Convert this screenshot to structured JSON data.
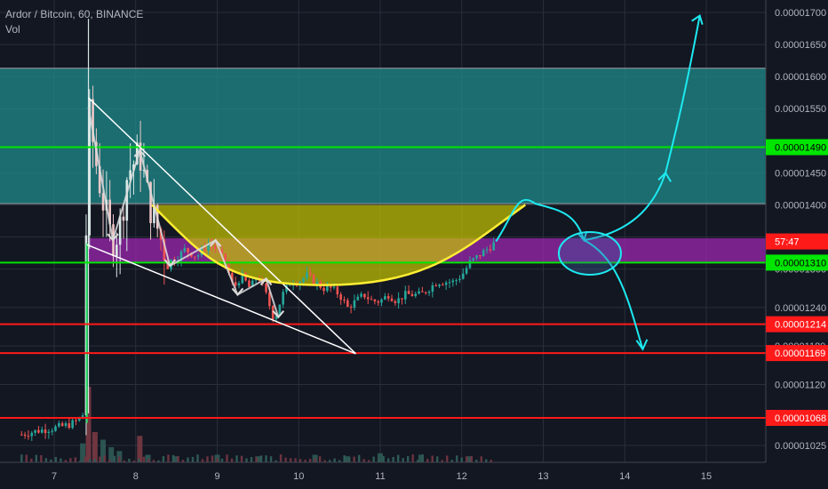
{
  "chart_data": {
    "type": "candlestick",
    "symbol_title": "Ardor / Bitcoin, 60, BINANCE",
    "volume_label": "Vol",
    "price_axis": {
      "min": 1e-05,
      "max": 1.713e-05,
      "ticks": [
        "0.00001700",
        "0.00001650",
        "0.00001600",
        "0.00001550",
        "0.00001450",
        "0.00001400",
        "0.00001350",
        "0.00001300",
        "0.00001240",
        "0.00001180",
        "0.00001120",
        "0.00001025"
      ]
    },
    "x_axis": {
      "ticks": [
        "7",
        "8",
        "9",
        "10",
        "11",
        "12",
        "13",
        "14",
        "15"
      ]
    },
    "zones": [
      {
        "name": "resistance-zone",
        "from": 1.402e-05,
        "to": 1.613e-05,
        "color": "#1f8f8f"
      },
      {
        "name": "support-zone",
        "from": 1.311e-05,
        "to": 1.348e-05,
        "color": "#9c27b0"
      },
      {
        "name": "cup-fill",
        "color": "#c8c800"
      }
    ],
    "horizontal_levels": [
      {
        "price": 1.49e-05,
        "label": "0.00001490",
        "color": "#00e600"
      },
      {
        "price": 1.31e-05,
        "label": "0.00001310",
        "color": "#00e600"
      },
      {
        "price": 1.214e-05,
        "label": "0.00001214",
        "color": "#ff1a1a"
      },
      {
        "price": 1.169e-05,
        "label": "0.00001169",
        "color": "#ff1a1a"
      },
      {
        "price": 1.068e-05,
        "label": "0.00001068",
        "color": "#ff1a1a"
      }
    ],
    "countdown_label": {
      "text": "57:47",
      "price": 1.343e-05,
      "color": "#ff1a1a"
    },
    "price_series": [
      {
        "t": 6.6,
        "p": 1.042e-05
      },
      {
        "t": 6.8,
        "p": 1.048e-05
      },
      {
        "t": 7.0,
        "p": 1.052e-05
      },
      {
        "t": 7.2,
        "p": 1.058e-05
      },
      {
        "t": 7.3,
        "p": 1.065e-05
      },
      {
        "t": 7.35,
        "p": 1.075e-05
      },
      {
        "t": 7.42,
        "p": 1.55e-05
      },
      {
        "t": 7.5,
        "p": 1.475e-05
      },
      {
        "t": 7.6,
        "p": 1.405e-05
      },
      {
        "t": 7.7,
        "p": 1.345e-05
      },
      {
        "t": 7.8,
        "p": 1.36e-05
      },
      {
        "t": 7.9,
        "p": 1.45e-05
      },
      {
        "t": 8.05,
        "p": 1.48e-05
      },
      {
        "t": 8.15,
        "p": 1.41e-05
      },
      {
        "t": 8.25,
        "p": 1.37e-05
      },
      {
        "t": 8.35,
        "p": 1.33e-05
      },
      {
        "t": 8.45,
        "p": 1.31e-05
      },
      {
        "t": 8.6,
        "p": 1.33e-05
      },
      {
        "t": 8.75,
        "p": 1.32e-05
      },
      {
        "t": 8.9,
        "p": 1.34e-05
      },
      {
        "t": 9.0,
        "p": 1.33e-05
      },
      {
        "t": 9.1,
        "p": 1.31e-05
      },
      {
        "t": 9.2,
        "p": 1.27e-05
      },
      {
        "t": 9.3,
        "p": 1.29e-05
      },
      {
        "t": 9.4,
        "p": 1.27e-05
      },
      {
        "t": 9.5,
        "p": 1.29e-05
      },
      {
        "t": 9.6,
        "p": 1.26e-05
      },
      {
        "t": 9.7,
        "p": 1.22e-05
      },
      {
        "t": 9.8,
        "p": 1.26e-05
      },
      {
        "t": 9.9,
        "p": 1.28e-05
      },
      {
        "t": 10.0,
        "p": 1.28e-05
      },
      {
        "t": 10.1,
        "p": 1.29e-05
      },
      {
        "t": 10.2,
        "p": 1.28e-05
      },
      {
        "t": 10.3,
        "p": 1.27e-05
      },
      {
        "t": 10.4,
        "p": 1.27e-05
      },
      {
        "t": 10.5,
        "p": 1.26e-05
      },
      {
        "t": 10.6,
        "p": 1.24e-05
      },
      {
        "t": 10.7,
        "p": 1.25e-05
      },
      {
        "t": 10.8,
        "p": 1.26e-05
      },
      {
        "t": 10.9,
        "p": 1.25e-05
      },
      {
        "t": 11.0,
        "p": 1.25e-05
      },
      {
        "t": 11.1,
        "p": 1.26e-05
      },
      {
        "t": 11.2,
        "p": 1.25e-05
      },
      {
        "t": 11.3,
        "p": 1.26e-05
      },
      {
        "t": 11.4,
        "p": 1.26e-05
      },
      {
        "t": 11.5,
        "p": 1.26e-05
      },
      {
        "t": 11.6,
        "p": 1.27e-05
      },
      {
        "t": 11.7,
        "p": 1.28e-05
      },
      {
        "t": 11.8,
        "p": 1.28e-05
      },
      {
        "t": 11.9,
        "p": 1.28e-05
      },
      {
        "t": 12.0,
        "p": 1.29e-05
      },
      {
        "t": 12.1,
        "p": 1.31e-05
      },
      {
        "t": 12.2,
        "p": 1.32e-05
      },
      {
        "t": 12.3,
        "p": 1.33e-05
      },
      {
        "t": 12.4,
        "p": 1.34e-05
      }
    ],
    "volume_series": [
      {
        "t": 7.35,
        "v": 0.25
      },
      {
        "t": 7.42,
        "v": 1.0
      },
      {
        "t": 7.5,
        "v": 0.4
      },
      {
        "t": 7.6,
        "v": 0.3
      },
      {
        "t": 7.7,
        "v": 0.2
      },
      {
        "t": 7.8,
        "v": 0.15
      },
      {
        "t": 8.05,
        "v": 0.35
      },
      {
        "t": 8.15,
        "v": 0.1
      },
      {
        "t": 8.5,
        "v": 0.08
      },
      {
        "t": 9.0,
        "v": 0.1
      },
      {
        "t": 9.5,
        "v": 0.08
      },
      {
        "t": 10.2,
        "v": 0.1
      },
      {
        "t": 10.6,
        "v": 0.08
      },
      {
        "t": 11.0,
        "v": 0.12
      },
      {
        "t": 11.5,
        "v": 0.1
      },
      {
        "t": 12.1,
        "v": 0.08
      }
    ],
    "drawings": {
      "falling_wedge_upper": [
        {
          "t": 7.42,
          "p": 1.567e-05
        },
        {
          "t": 9.85,
          "p": 1.235e-05
        }
      ],
      "falling_wedge_lower": [
        {
          "t": 7.4,
          "p": 1.338e-05
        },
        {
          "t": 10.7,
          "p": 1.168e-05
        }
      ],
      "cup_curve": {
        "left": {
          "t": 8.2,
          "p": 1.4e-05
        },
        "bottom": {
          "t": 10.3,
          "p": 1.275e-05
        },
        "right": {
          "t": 12.78,
          "p": 1.4e-05
        }
      },
      "zigzag_arrows": [
        {
          "t": 7.42,
          "p": 1.552e-05
        },
        {
          "t": 7.72,
          "p": 1.345e-05
        },
        {
          "t": 8.05,
          "p": 1.485e-05
        },
        {
          "t": 8.42,
          "p": 1.305e-05
        },
        {
          "t": 8.98,
          "p": 1.345e-05
        },
        {
          "t": 9.25,
          "p": 1.26e-05
        },
        {
          "t": 9.6,
          "p": 1.285e-05
        },
        {
          "t": 9.75,
          "p": 1.225e-05
        }
      ],
      "forecast_path": [
        {
          "t": 12.42,
          "p": 1.343e-05
        },
        {
          "t": 12.9,
          "p": 1.402e-05
        },
        {
          "t": 13.5,
          "p": 1.345e-05
        }
      ],
      "forecast_up": [
        {
          "t": 13.5,
          "p": 1.345e-05
        },
        {
          "t": 14.5,
          "p": 1.45e-05
        },
        {
          "t": 14.92,
          "p": 1.695e-05
        }
      ],
      "forecast_down": [
        {
          "t": 13.5,
          "p": 1.345e-05
        },
        {
          "t": 14.22,
          "p": 1.175e-05
        }
      ],
      "target_ellipse": {
        "t": 13.55,
        "p": 1.33e-05
      },
      "forecast_color": "#1de9f0"
    },
    "colors": {
      "up": "#26a69a",
      "down": "#ef5350",
      "background": "#131722",
      "grid": "#2a2e39",
      "axis_text": "#b2b5be"
    }
  }
}
